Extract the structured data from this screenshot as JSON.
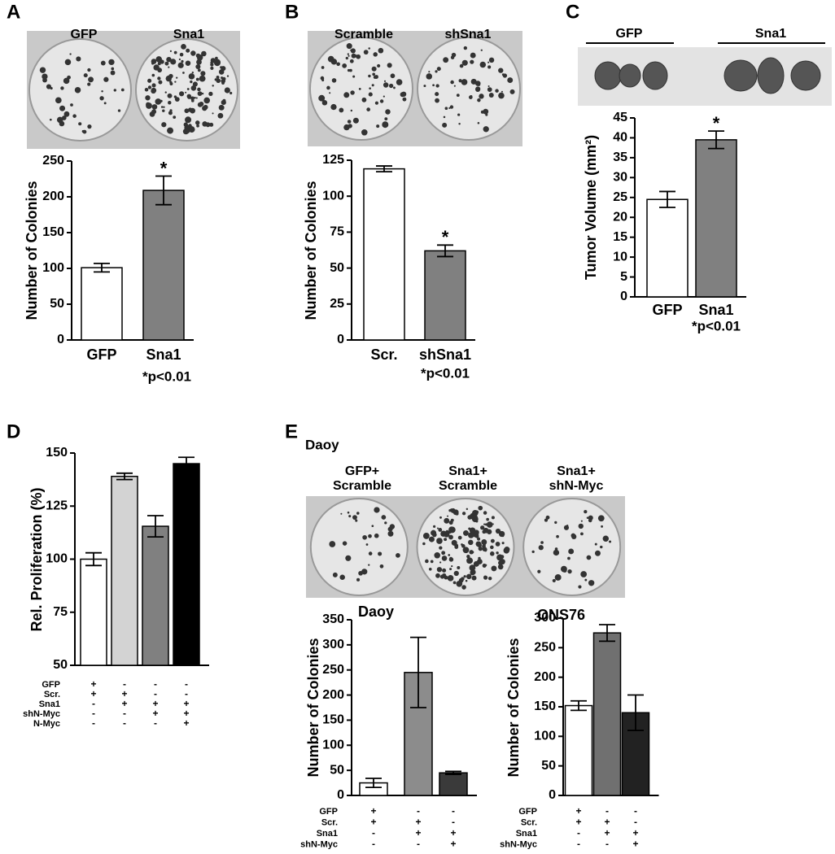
{
  "chart_data": [
    {
      "type": "bar",
      "panel": "A",
      "photo_labels": [
        "GFP",
        "Sna1"
      ],
      "ylabel": "Number of Colonies",
      "categories": [
        "GFP",
        "Sna1"
      ],
      "values": [
        101,
        209
      ],
      "errors": [
        6,
        20
      ],
      "colors": [
        "#ffffff",
        "#808080"
      ],
      "ylim": [
        0,
        250
      ],
      "yticks": [
        0,
        50,
        100,
        150,
        200,
        250
      ],
      "significance": "*",
      "footnote": "*p<0.01"
    },
    {
      "type": "bar",
      "panel": "B",
      "photo_labels": [
        "Scramble",
        "shSna1"
      ],
      "ylabel": "Number of Colonies",
      "categories": [
        "Scr.",
        "shSna1"
      ],
      "values": [
        119,
        62
      ],
      "errors": [
        2,
        4
      ],
      "colors": [
        "#ffffff",
        "#808080"
      ],
      "ylim": [
        0,
        125
      ],
      "yticks": [
        0,
        25,
        50,
        75,
        100,
        125
      ],
      "significance": "*",
      "footnote": "*p<0.01"
    },
    {
      "type": "bar",
      "panel": "C",
      "photo_labels": [
        "GFP",
        "Sna1"
      ],
      "ylabel": "Tumor Volume (mm²)",
      "categories": [
        "GFP",
        "Sna1"
      ],
      "values": [
        24.5,
        39.5
      ],
      "errors": [
        2,
        2.2
      ],
      "colors": [
        "#ffffff",
        "#808080"
      ],
      "ylim": [
        0,
        45
      ],
      "yticks": [
        0,
        5,
        10,
        15,
        20,
        25,
        30,
        35,
        40,
        45
      ],
      "significance": "*",
      "footnote": "*p<0.01"
    },
    {
      "type": "bar",
      "panel": "D",
      "ylabel": "Rel. Proliferation (%)",
      "values": [
        100,
        139,
        115.5,
        145
      ],
      "errors": [
        3,
        1.5,
        5,
        3
      ],
      "colors": [
        "#ffffff",
        "#d3d3d3",
        "#808080",
        "#000000"
      ],
      "ylim": [
        50,
        150
      ],
      "yticks": [
        50,
        75,
        100,
        125,
        150
      ],
      "conditions": [
        {
          "name": "GFP",
          "marks": [
            "+",
            "-",
            "-",
            "-"
          ]
        },
        {
          "name": "Scr.",
          "marks": [
            "+",
            "+",
            "-",
            "-"
          ]
        },
        {
          "name": "Sna1",
          "marks": [
            "-",
            "+",
            "+",
            "+"
          ]
        },
        {
          "name": "shN-Myc",
          "marks": [
            "-",
            "-",
            "+",
            "+"
          ]
        },
        {
          "name": "N-Myc",
          "marks": [
            "-",
            "-",
            "-",
            "+"
          ]
        }
      ]
    },
    {
      "type": "bar",
      "panel": "E",
      "panel_header": "Daoy",
      "photo_labels": [
        [
          "GFP+",
          "Scramble"
        ],
        [
          "Sna1+",
          "Scramble"
        ],
        [
          "Sna1+",
          "shN-Myc"
        ]
      ],
      "title": "Daoy",
      "ylabel": "Number of Colonies",
      "values": [
        25,
        245,
        45
      ],
      "errors": [
        9,
        70,
        3
      ],
      "colors": [
        "#ffffff",
        "#8c8c8c",
        "#3a3a3a"
      ],
      "ylim": [
        0,
        350
      ],
      "yticks": [
        0,
        50,
        100,
        150,
        200,
        250,
        300,
        350
      ],
      "conditions": [
        {
          "name": "GFP",
          "marks": [
            "+",
            "-",
            "-"
          ]
        },
        {
          "name": "Scr.",
          "marks": [
            "+",
            "+",
            "-"
          ]
        },
        {
          "name": "Sna1",
          "marks": [
            "-",
            "+",
            "+"
          ]
        },
        {
          "name": "shN-Myc",
          "marks": [
            "-",
            "-",
            "+"
          ]
        }
      ]
    },
    {
      "type": "bar",
      "title": "ONS76",
      "ylabel": "Number of Colonies",
      "values": [
        152,
        275,
        140
      ],
      "errors": [
        8,
        14,
        30
      ],
      "colors": [
        "#ffffff",
        "#707070",
        "#222222"
      ],
      "ylim": [
        0,
        300
      ],
      "yticks": [
        0,
        50,
        100,
        150,
        200,
        250,
        300
      ],
      "conditions": [
        {
          "name": "GFP",
          "marks": [
            "+",
            "-",
            "-"
          ]
        },
        {
          "name": "Scr.",
          "marks": [
            "+",
            "+",
            "-"
          ]
        },
        {
          "name": "Sna1",
          "marks": [
            "-",
            "+",
            "+"
          ]
        },
        {
          "name": "shN-Myc",
          "marks": [
            "-",
            "-",
            "+"
          ]
        }
      ]
    }
  ]
}
